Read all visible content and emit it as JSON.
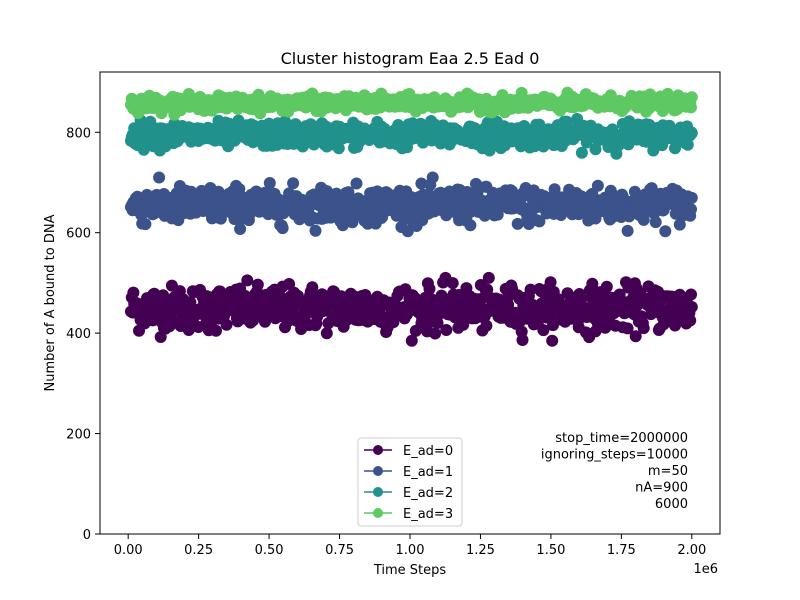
{
  "chart_data": {
    "type": "scatter",
    "title": "Cluster histogram Eaa 2.5 Ead 0",
    "xlabel": "Time Steps",
    "ylabel": "Number of A bound to DNA",
    "x_offset_label": "1e6",
    "xlim": [
      -0.1,
      2.1
    ],
    "ylim": [
      0,
      920
    ],
    "x_ticks": [
      0.0,
      0.25,
      0.5,
      0.75,
      1.0,
      1.25,
      1.5,
      1.75,
      2.0
    ],
    "x_tick_labels": [
      "0.00",
      "0.25",
      "0.50",
      "0.75",
      "1.00",
      "1.25",
      "1.50",
      "1.75",
      "2.00"
    ],
    "y_ticks": [
      0,
      200,
      400,
      600,
      800
    ],
    "y_tick_labels": [
      "0",
      "200",
      "400",
      "600",
      "800"
    ],
    "grid": false,
    "legend_position": "lower-center",
    "series": [
      {
        "name": "E_ad=0",
        "color": "#440154",
        "x_range": [
          0.01,
          2.0
        ],
        "mean": 450,
        "spread": 22,
        "min": 385,
        "max": 510,
        "marker": "circle"
      },
      {
        "name": "E_ad=1",
        "color": "#3b528b",
        "x_range": [
          0.01,
          2.0
        ],
        "mean": 655,
        "spread": 18,
        "min": 603,
        "max": 710,
        "marker": "circle"
      },
      {
        "name": "E_ad=2",
        "color": "#21918c",
        "x_range": [
          0.01,
          2.0
        ],
        "mean": 795,
        "spread": 12,
        "min": 745,
        "max": 830,
        "marker": "circle"
      },
      {
        "name": "E_ad=3",
        "color": "#5ec962",
        "x_range": [
          0.01,
          2.0
        ],
        "mean": 858,
        "spread": 7,
        "min": 835,
        "max": 882,
        "marker": "circle"
      }
    ],
    "annotation_lines": [
      "stop_time=2000000",
      "ignoring_steps=10000",
      "m=50",
      "nA=900",
      "6000"
    ]
  }
}
